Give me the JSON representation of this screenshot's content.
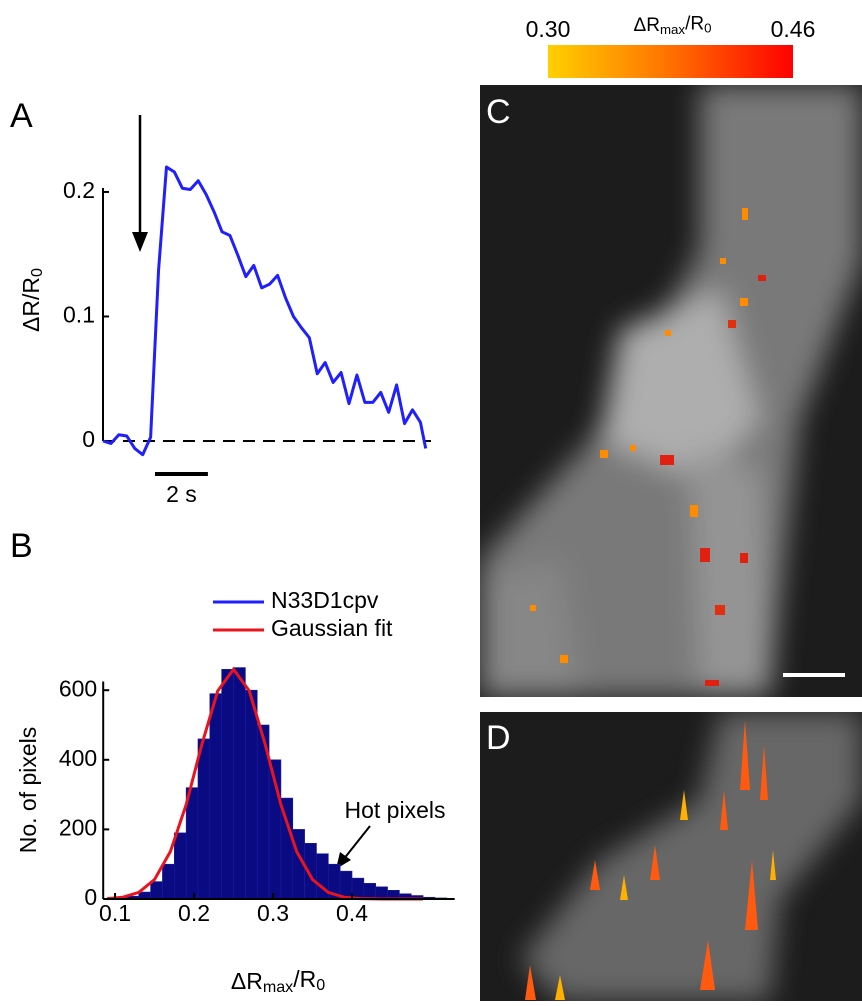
{
  "chart_data": [
    {
      "type": "line",
      "panel": "A",
      "ylabel": [
        "ΔR/R",
        "0"
      ],
      "x": [
        0.0,
        0.3,
        0.6,
        0.9,
        1.2,
        1.5,
        1.8,
        2.1,
        2.4,
        2.7,
        3.0,
        3.3,
        3.6,
        3.9,
        4.2,
        4.5,
        4.8,
        5.1,
        5.4,
        5.7,
        6.0,
        6.3,
        6.6,
        6.9,
        7.2,
        7.5,
        7.8,
        8.1,
        8.4,
        8.7,
        9.0,
        9.3,
        9.6,
        9.9,
        10.2,
        10.5,
        10.8,
        11.1,
        11.4,
        11.7,
        12.0,
        12.2
      ],
      "series": [
        {
          "color": "#1f1fff",
          "values": [
            0,
            -0.002,
            0.005,
            0.004,
            -0.006,
            -0.011,
            0.003,
            0.137,
            0.22,
            0.216,
            0.203,
            0.202,
            0.209,
            0.198,
            0.184,
            0.168,
            0.165,
            0.149,
            0.132,
            0.141,
            0.123,
            0.126,
            0.133,
            0.115,
            0.1,
            0.091,
            0.083,
            0.054,
            0.063,
            0.047,
            0.055,
            0.03,
            0.053,
            0.031,
            0.031,
            0.039,
            0.023,
            0.045,
            0.014,
            0.025,
            0.015,
            -0.006
          ]
        }
      ],
      "xlim": [
        0,
        12.4
      ],
      "ylim": [
        -0.02,
        0.23
      ],
      "yticks": [
        0,
        0.1,
        0.2
      ],
      "scalebar": {
        "value": 2,
        "label": "2 s"
      }
    },
    {
      "type": "histogram",
      "panel": "B",
      "ylabel": "No. of pixels",
      "xlabel": [
        "ΔR",
        "max",
        "/R",
        "0"
      ],
      "bins": [
        0.1,
        0.115,
        0.13,
        0.145,
        0.16,
        0.175,
        0.19,
        0.205,
        0.22,
        0.235,
        0.25,
        0.265,
        0.28,
        0.295,
        0.31,
        0.325,
        0.34,
        0.355,
        0.37,
        0.385,
        0.4,
        0.415,
        0.43,
        0.445,
        0.46,
        0.475,
        0.49,
        0.505,
        0.52
      ],
      "counts": [
        3,
        8,
        20,
        50,
        100,
        190,
        320,
        460,
        590,
        660,
        665,
        600,
        500,
        400,
        290,
        200,
        160,
        130,
        100,
        80,
        60,
        45,
        35,
        25,
        15,
        10,
        5,
        3
      ],
      "bar_color": "#0a0a82",
      "fit": {
        "name": "Gaussian fit",
        "color": "#e8141e",
        "x": [
          0.09,
          0.11,
          0.13,
          0.15,
          0.17,
          0.19,
          0.21,
          0.23,
          0.25,
          0.27,
          0.29,
          0.31,
          0.33,
          0.35,
          0.37,
          0.39,
          0.41,
          0.43,
          0.45,
          0.47,
          0.49
        ],
        "values": [
          1.2,
          5.2,
          18.9,
          55.9,
          136,
          271,
          445,
          598,
          660,
          598,
          445,
          271,
          136,
          55.9,
          18.9,
          5.2,
          1.2,
          0.2,
          0,
          0,
          0
        ]
      },
      "legend": [
        {
          "name": "N33D1cpv",
          "color": "#1f1fff"
        },
        {
          "name": "Gaussian fit",
          "color": "#e8141e"
        }
      ],
      "annotation": "Hot pixels",
      "xlim": [
        0.085,
        0.53
      ],
      "ylim": [
        0,
        625
      ],
      "xticks": [
        0.1,
        0.2,
        0.3,
        0.4
      ],
      "yticks": [
        0,
        200,
        400,
        600
      ]
    },
    {
      "type": "image",
      "panels": [
        "C",
        "D"
      ],
      "colorbar": {
        "title": [
          "ΔR",
          "max",
          "/R",
          "0"
        ],
        "lim": [
          0.3,
          0.46
        ],
        "ticks": [
          {
            "value": 0.3,
            "label": "0.30"
          },
          0.46
        ],
        "colors": [
          "#ffd000",
          "#ff7000",
          "#ff0000"
        ]
      }
    }
  ]
}
